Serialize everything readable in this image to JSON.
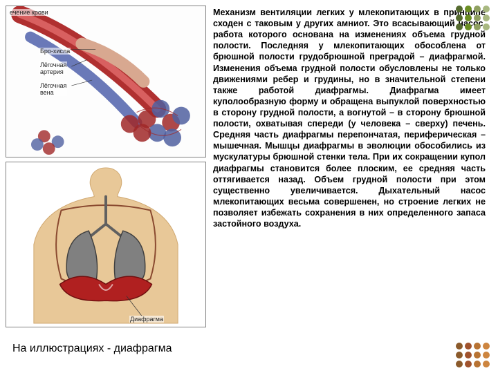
{
  "illustration1": {
    "labels": {
      "blood_flow": "ечение крови",
      "bronchiole": "Бро-хисла",
      "artery": "Лёгочная\nартерия",
      "vein": "Лёгочная\nвена"
    },
    "colors": {
      "artery": "#b03030",
      "artery_light": "#d86060",
      "vein": "#5a6ab0",
      "bronchiole": "#d8a890",
      "alveoli_red": "#a02828",
      "alveoli_blue": "#5060a0",
      "bg": "#fdfdfd"
    }
  },
  "illustration2": {
    "labels": {
      "diaphragm": "Диафрагма"
    },
    "colors": {
      "skin": "#e8c898",
      "neck_shadow": "#d0a870",
      "rib_outline": "#8a4a30",
      "lung_fill": "#808080",
      "lung_outline": "#404040",
      "diaphragm": "#b02020",
      "trachea": "#606060",
      "bg": "#ffffff"
    }
  },
  "text": {
    "body": "Механизм вентиляции легких у млекопитающих в принципе сходен с таковым у других амниот. Это всасывающий насос, работа которого основана на изменениях объема грудной полости. Последняя у млекопитающих обособлена от брюшной полости грудобрюшной преградой – диафрагмой. Изменения объема грудной полости обусловлены не только движениями ребер и грудины, но в значительной степени также работой диафрагмы. Диафрагма имеет куполообразную форму и обращена выпуклой поверхностью в сторону грудной полости, а вогнутой – в сторону брюшной полости, охватывая спереди (у человека – сверху) печень. Средняя часть диафрагмы перепончатая, периферическая – мышечная. Мышцы диафрагмы в эволюции обособились из мускулатуры брюшной стенки тела. При их сокращении купол диафрагмы становится более плоским, ее средняя часть оттягивается назад. Объем грудной полости при этом существенно увеличивается. Дыхательный насос млекопитающих весьма совершенен, но строение легких не позволяет избежать сохранения в них определенного запаса застойного воздуха.",
    "caption": "На иллюстрациях - диафрагма"
  },
  "decor": {
    "dot_colors_top": [
      "#556b2f",
      "#6b8e23",
      "#8fa060",
      "#a8b880",
      "#556b2f",
      "#6b8e23",
      "#8fa060",
      "#a8b880",
      "#556b2f",
      "#6b8e23",
      "#8fa060",
      "#a8b880"
    ],
    "dot_colors_bottom": [
      "#8b5a2b",
      "#a0522d",
      "#b87333",
      "#cd853f",
      "#8b5a2b",
      "#a0522d",
      "#b87333",
      "#cd853f",
      "#8b5a2b",
      "#a0522d",
      "#b87333",
      "#cd853f"
    ]
  }
}
